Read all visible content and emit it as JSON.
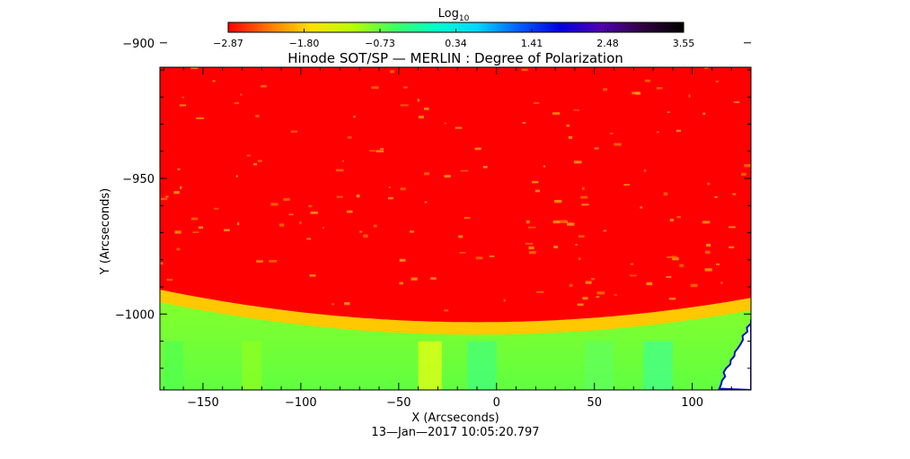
{
  "chart_data": {
    "type": "heatmap",
    "title": "Hinode SOT/SP — MERLIN : Degree of Polarization",
    "xlabel": "X (Arcseconds)",
    "ylabel": "Y (Arcseconds)",
    "timestamp": "13—Jan—2017 10:05:20.797",
    "xlim": [
      -172,
      130
    ],
    "ylim": [
      -1028,
      -909
    ],
    "x_ticks": [
      -150,
      -100,
      -50,
      0,
      50,
      100
    ],
    "x_tick_labels": [
      "−150",
      "−100",
      "−50",
      "0",
      "50",
      "100"
    ],
    "y_ticks": [
      -900,
      -950,
      -1000
    ],
    "y_tick_labels": [
      "−900",
      "−950",
      "−1000"
    ],
    "colorbar": {
      "label_base": "Log",
      "label_sub": "10",
      "range": [
        -2.87,
        3.55
      ],
      "ticks": [
        -2.87,
        -1.8,
        -0.73,
        0.34,
        1.41,
        2.48,
        3.55
      ],
      "tick_labels": [
        "−2.87",
        "−1.80",
        "−0.73",
        "0.34",
        "1.41",
        "2.48",
        "3.55"
      ],
      "stops": [
        "#ff0000",
        "#ff7a00",
        "#ffe000",
        "#b8ff00",
        "#40ff60",
        "#00ffc8",
        "#00d8ff",
        "#0060ff",
        "#0000e0",
        "#5000b0",
        "#300040",
        "#000000"
      ]
    },
    "limb": {
      "y_at_x_min": -991,
      "y_at_center": -1003,
      "y_at_x_max": -991,
      "x_center": -10
    },
    "regions": [
      {
        "region": "on-disk",
        "log_value": -2.87,
        "color": "#ff0000"
      },
      {
        "region": "limb band",
        "log_value": -1.3,
        "color": "#ffd800"
      },
      {
        "region": "off-limb",
        "log_value": -0.4,
        "color": "#9cff10"
      },
      {
        "region": "off-limb bright",
        "log_value": 0.1,
        "color": "#20ff80"
      }
    ]
  }
}
